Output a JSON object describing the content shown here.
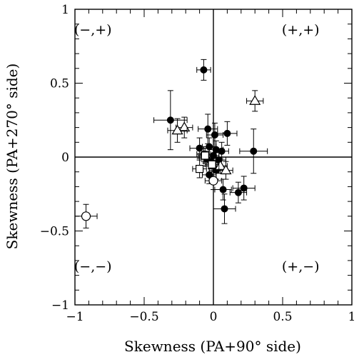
{
  "chart_data": {
    "type": "scatter",
    "xlabel": "Skewness (PA+90° side)",
    "ylabel": "Skewness (PA+270° side)",
    "xlim": [
      -1,
      1
    ],
    "ylim": [
      -1,
      1
    ],
    "x_ticks": [
      -1,
      -0.5,
      0,
      0.5,
      1
    ],
    "y_ticks": [
      -1,
      -0.5,
      0,
      0.5,
      1
    ],
    "x_tick_labels": [
      "−1",
      "−0.5",
      "0",
      "0.5",
      "1"
    ],
    "y_tick_labels": [
      "−1",
      "−0.5",
      "0",
      "0.5",
      "1"
    ],
    "zero_lines": true,
    "grid": false,
    "quadrant_labels": [
      {
        "text": "(−,+)",
        "x": -0.87,
        "y": 0.83
      },
      {
        "text": "(+,+)",
        "x": 0.63,
        "y": 0.83
      },
      {
        "text": "(−,−)",
        "x": -0.87,
        "y": -0.77
      },
      {
        "text": "(+,−)",
        "x": 0.63,
        "y": -0.77
      }
    ],
    "series": [
      {
        "marker": "filled-circle",
        "points": [
          {
            "x": -0.07,
            "y": 0.59,
            "xerr": 0.05,
            "yerr": 0.07
          },
          {
            "x": -0.31,
            "y": 0.25,
            "xerr": 0.12,
            "yerr": 0.2
          },
          {
            "x": -0.04,
            "y": 0.19,
            "xerr": 0.07,
            "yerr": 0.1
          },
          {
            "x": 0.1,
            "y": 0.16,
            "xerr": 0.07,
            "yerr": 0.08
          },
          {
            "x": 0.01,
            "y": 0.15,
            "xerr": 0.06,
            "yerr": 0.08
          },
          {
            "x": -0.1,
            "y": 0.06,
            "xerr": 0.07,
            "yerr": 0.07
          },
          {
            "x": -0.03,
            "y": 0.07,
            "xerr": 0.05,
            "yerr": 0.06
          },
          {
            "x": 0.02,
            "y": 0.05,
            "xerr": 0.05,
            "yerr": 0.06
          },
          {
            "x": 0.06,
            "y": 0.04,
            "xerr": 0.05,
            "yerr": 0.06
          },
          {
            "x": 0.29,
            "y": 0.04,
            "xerr": 0.1,
            "yerr": 0.15
          },
          {
            "x": -0.07,
            "y": 0.02,
            "xerr": 0.05,
            "yerr": 0.05
          },
          {
            "x": -0.05,
            "y": -0.01,
            "xerr": 0.05,
            "yerr": 0.05
          },
          {
            "x": -0.02,
            "y": -0.03,
            "xerr": 0.05,
            "yerr": 0.05
          },
          {
            "x": 0.0,
            "y": 0.01,
            "xerr": 0.04,
            "yerr": 0.05
          },
          {
            "x": 0.04,
            "y": -0.02,
            "xerr": 0.05,
            "yerr": 0.05
          },
          {
            "x": 0.02,
            "y": -0.09,
            "xerr": 0.05,
            "yerr": 0.06
          },
          {
            "x": -0.03,
            "y": -0.12,
            "xerr": 0.05,
            "yerr": 0.06
          },
          {
            "x": 0.07,
            "y": -0.22,
            "xerr": 0.06,
            "yerr": 0.07
          },
          {
            "x": 0.18,
            "y": -0.24,
            "xerr": 0.06,
            "yerr": 0.07
          },
          {
            "x": 0.22,
            "y": -0.21,
            "xerr": 0.08,
            "yerr": 0.08
          },
          {
            "x": 0.08,
            "y": -0.35,
            "xerr": 0.08,
            "yerr": 0.1
          }
        ]
      },
      {
        "marker": "open-triangle",
        "points": [
          {
            "x": 0.3,
            "y": 0.38,
            "xerr": 0.06,
            "yerr": 0.07
          },
          {
            "x": -0.21,
            "y": 0.2,
            "xerr": 0.06,
            "yerr": 0.07
          },
          {
            "x": -0.26,
            "y": 0.18,
            "xerr": 0.07,
            "yerr": 0.08
          },
          {
            "x": 0.05,
            "y": -0.06,
            "xerr": 0.05,
            "yerr": 0.05
          },
          {
            "x": 0.09,
            "y": -0.09,
            "xerr": 0.05,
            "yerr": 0.06
          }
        ]
      },
      {
        "marker": "open-square",
        "points": [
          {
            "x": -0.06,
            "y": 0.01,
            "xerr": 0.05,
            "yerr": 0.05
          },
          {
            "x": -0.01,
            "y": -0.05,
            "xerr": 0.05,
            "yerr": 0.05
          },
          {
            "x": -0.1,
            "y": -0.08,
            "xerr": 0.05,
            "yerr": 0.06
          }
        ]
      },
      {
        "marker": "open-circle",
        "points": [
          {
            "x": -0.92,
            "y": -0.4,
            "xerr": 0.08,
            "yerr": 0.08
          },
          {
            "x": 0.0,
            "y": -0.16,
            "xerr": 0.06,
            "yerr": 0.06
          }
        ]
      }
    ]
  }
}
